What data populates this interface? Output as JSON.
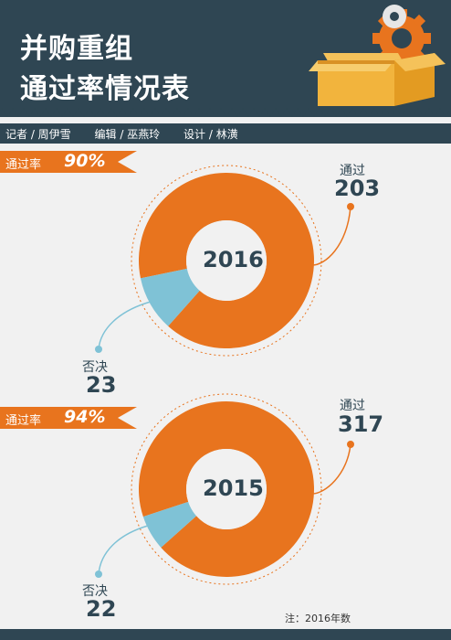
{
  "header": {
    "title_line1": "并购重组",
    "title_line2": "通过率情况表"
  },
  "credits": {
    "reporter": "记者 / 周伊雪",
    "editor": "编辑 / 巫燕玲",
    "design": "设计 / 林潢"
  },
  "colors": {
    "dark": "#2f4653",
    "orange": "#e8741e",
    "blue": "#7fc2d6"
  },
  "icons": [
    "gear-icon",
    "box-icon"
  ],
  "chart_data": [
    {
      "type": "pie",
      "title": "2016",
      "rate_label": "通过率",
      "rate_value": "90%",
      "series": [
        {
          "name": "通过",
          "value": 203
        },
        {
          "name": "否决",
          "value": 23
        }
      ]
    },
    {
      "type": "pie",
      "title": "2015",
      "rate_label": "通过率",
      "rate_value": "94%",
      "series": [
        {
          "name": "通过",
          "value": 317
        },
        {
          "name": "否决",
          "value": 22
        }
      ]
    }
  ],
  "footer": {
    "note": "注：2016年数"
  }
}
